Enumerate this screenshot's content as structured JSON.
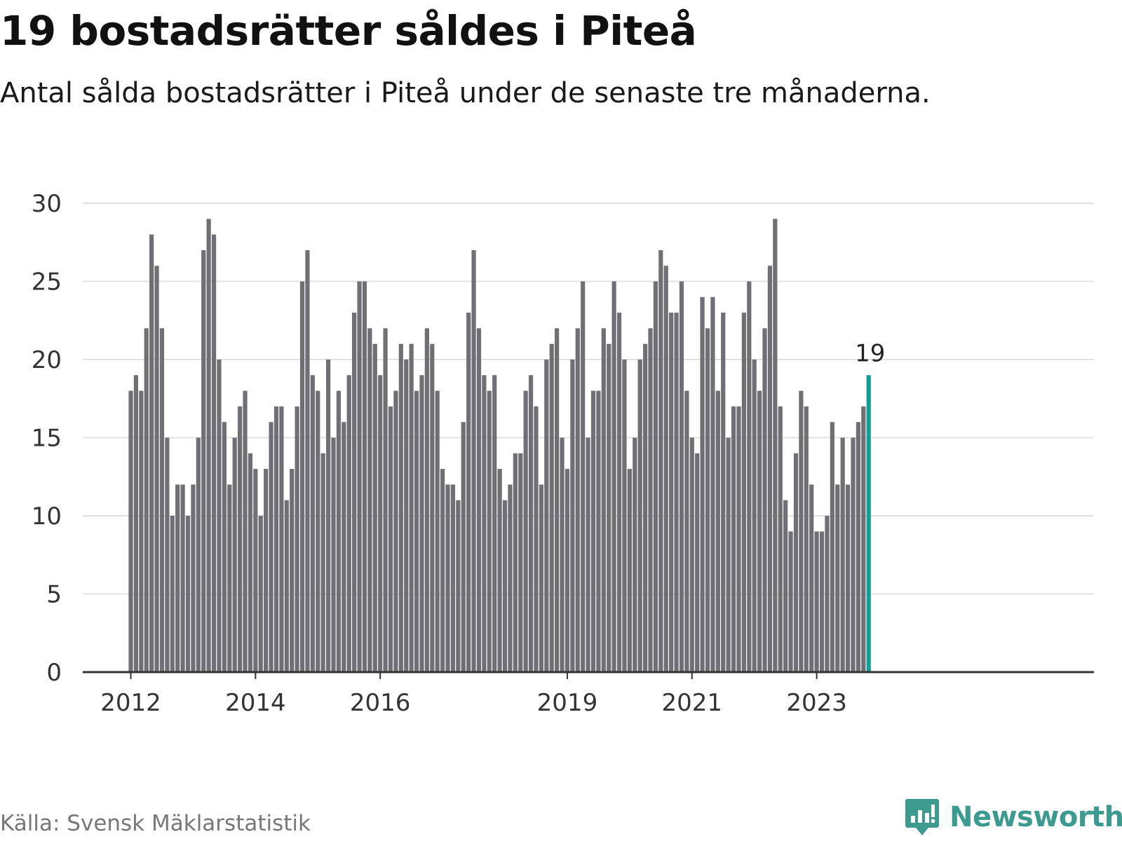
{
  "title": "19 bostadsrätter såldes i Piteå",
  "subtitle": "Antal sålda bostadsrätter i Piteå under de senaste tre månaderna.",
  "source": "Källa: Svensk Mäklarstatistik",
  "brand": {
    "name": "Newsworthy",
    "icon": "newsworthy-logo-icon",
    "color": "#3c9a8f"
  },
  "colors": {
    "bar": "#6f6f74",
    "highlight": "#139e95",
    "grid": "#e1e1e1",
    "axis": "#333333"
  },
  "chart_data": {
    "type": "bar",
    "title": "19 bostadsrätter såldes i Piteå",
    "xlabel": "",
    "ylabel": "",
    "ylim": [
      0,
      30
    ],
    "yticks": [
      0,
      5,
      10,
      15,
      20,
      25,
      30
    ],
    "grid": true,
    "start": "2012-01",
    "x_tick_labels": [
      {
        "label": "2012",
        "index": 0
      },
      {
        "label": "2014",
        "index": 24
      },
      {
        "label": "2016",
        "index": 48
      },
      {
        "label": "2019",
        "index": 84
      },
      {
        "label": "2021",
        "index": 108
      },
      {
        "label": "2023",
        "index": 132
      }
    ],
    "values": [
      18,
      19,
      18,
      22,
      28,
      26,
      22,
      15,
      10,
      12,
      12,
      10,
      12,
      15,
      27,
      29,
      28,
      20,
      16,
      12,
      15,
      17,
      18,
      14,
      13,
      10,
      13,
      16,
      17,
      17,
      11,
      13,
      17,
      25,
      27,
      19,
      18,
      14,
      20,
      15,
      18,
      16,
      19,
      23,
      25,
      25,
      22,
      21,
      19,
      22,
      17,
      18,
      21,
      20,
      21,
      18,
      19,
      22,
      21,
      18,
      13,
      12,
      12,
      11,
      16,
      23,
      27,
      22,
      19,
      18,
      19,
      13,
      11,
      12,
      14,
      14,
      18,
      19,
      17,
      12,
      20,
      21,
      22,
      15,
      13,
      20,
      22,
      25,
      15,
      18,
      18,
      22,
      21,
      25,
      23,
      20,
      13,
      15,
      20,
      21,
      22,
      25,
      27,
      26,
      23,
      23,
      25,
      18,
      15,
      14,
      24,
      22,
      24,
      18,
      23,
      15,
      17,
      17,
      23,
      25,
      20,
      18,
      22,
      26,
      29,
      17,
      11,
      9,
      14,
      18,
      17,
      12,
      9,
      9,
      10,
      16,
      12,
      15,
      12,
      15,
      16,
      17,
      19
    ],
    "highlight_index": 142,
    "highlight_label": "19"
  }
}
